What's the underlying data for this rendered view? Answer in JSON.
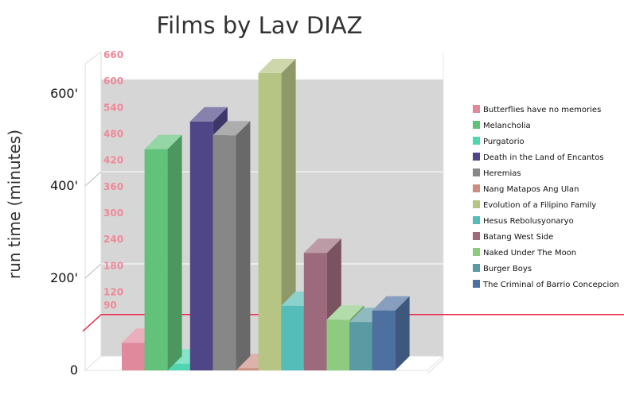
{
  "chart_data": {
    "type": "bar",
    "title": "Films by Lav DIAZ",
    "ylabel": "run time (minutes)",
    "xlabel": "",
    "ylim": [
      0,
      660
    ],
    "y_ticks": [
      {
        "value": 0,
        "label": "0"
      },
      {
        "value": 200,
        "label": "200'"
      },
      {
        "value": 400,
        "label": "400'"
      },
      {
        "value": 600,
        "label": "600'"
      }
    ],
    "marker_labels": [
      "90",
      "120",
      "180",
      "240",
      "300",
      "360",
      "420",
      "480",
      "540",
      "600",
      "660"
    ],
    "reference_line": 90,
    "grid": true,
    "legend": "right",
    "series": [
      {
        "name": "Butterflies have no memories",
        "value": 60,
        "color": "#e0889c"
      },
      {
        "name": "Melancholia",
        "value": 480,
        "color": "#62c27a"
      },
      {
        "name": "Purgatorio",
        "value": 15,
        "color": "#4fd6b0"
      },
      {
        "name": "Death in the Land of Encantos",
        "value": 540,
        "color": "#4e4686"
      },
      {
        "name": "Heremias",
        "value": 510,
        "color": "#878787"
      },
      {
        "name": "Nang Matapos Ang Ulan",
        "value": 5,
        "color": "#cc8e82"
      },
      {
        "name": "Evolution of a Filipino Family",
        "value": 645,
        "color": "#b6c484"
      },
      {
        "name": "Hesus Rebolusyonaryo",
        "value": 140,
        "color": "#55bdb9"
      },
      {
        "name": "Batang West Side",
        "value": 255,
        "color": "#9c6a7c"
      },
      {
        "name": "Naked Under The Moon",
        "value": 110,
        "color": "#8ecb80"
      },
      {
        "name": "Burger Boys",
        "value": 105,
        "color": "#5a9aa2"
      },
      {
        "name": "The Criminal of Barrio Concepcion",
        "value": 130,
        "color": "#4e70a0"
      }
    ]
  }
}
